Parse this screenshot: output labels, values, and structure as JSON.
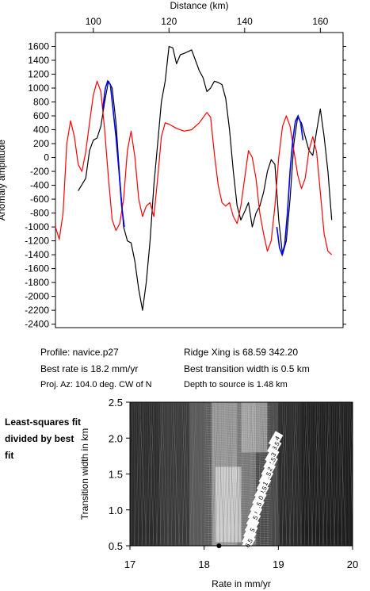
{
  "chart_data": [
    {
      "type": "line",
      "xlabel": "Distance (km)",
      "ylabel": "Anomaly amplitude",
      "xlim": [
        90,
        166
      ],
      "ylim": [
        -2450,
        1800
      ],
      "x_ticks": [
        100,
        120,
        140,
        160
      ],
      "y_ticks": [
        1600,
        1400,
        1200,
        1000,
        800,
        600,
        400,
        200,
        0,
        -200,
        -400,
        -600,
        -800,
        -1000,
        -1200,
        -1400,
        -1600,
        -1800,
        -2000,
        -2200,
        -2400
      ],
      "grid": false,
      "series": [
        {
          "color": "#000000",
          "values": [
            [
              96,
              -480
            ],
            [
              98,
              -300
            ],
            [
              99,
              100
            ],
            [
              100,
              250
            ],
            [
              101,
              280
            ],
            [
              102,
              450
            ],
            [
              103,
              800
            ],
            [
              104,
              1100
            ],
            [
              105,
              1000
            ],
            [
              106,
              500
            ],
            [
              107,
              -300
            ],
            [
              108,
              -1000
            ],
            [
              109,
              -1200
            ],
            [
              110,
              -1230
            ],
            [
              111,
              -1500
            ],
            [
              112,
              -1900
            ],
            [
              113,
              -2200
            ],
            [
              114,
              -1800
            ],
            [
              115,
              -1200
            ],
            [
              116,
              -400
            ],
            [
              117,
              200
            ],
            [
              118,
              800
            ],
            [
              119,
              1100
            ],
            [
              120,
              1600
            ],
            [
              121,
              1580
            ],
            [
              122,
              1350
            ],
            [
              123,
              1480
            ],
            [
              124,
              1500
            ],
            [
              126,
              1550
            ],
            [
              127,
              1400
            ],
            [
              128,
              1250
            ],
            [
              129,
              1150
            ],
            [
              130,
              950
            ],
            [
              131,
              1000
            ],
            [
              132,
              1100
            ],
            [
              133,
              1080
            ],
            [
              134,
              1050
            ],
            [
              135,
              850
            ],
            [
              136,
              400
            ],
            [
              137,
              -200
            ],
            [
              138,
              -700
            ],
            [
              139,
              -900
            ],
            [
              140,
              -780
            ],
            [
              141,
              -650
            ],
            [
              142,
              -1000
            ],
            [
              143,
              -800
            ],
            [
              144,
              -700
            ],
            [
              145,
              -500
            ],
            [
              146,
              -200
            ],
            [
              147,
              -30
            ],
            [
              148,
              -100
            ],
            [
              149,
              -900
            ],
            [
              150,
              -1400
            ],
            [
              151,
              -1200
            ],
            [
              152,
              -600
            ],
            [
              153,
              200
            ],
            [
              154,
              580
            ],
            [
              155,
              500
            ],
            [
              156,
              300
            ],
            [
              157,
              100
            ],
            [
              158,
              30
            ],
            [
              159,
              380
            ],
            [
              160,
              700
            ],
            [
              161,
              300
            ],
            [
              162,
              -200
            ],
            [
              163,
              -900
            ]
          ]
        },
        {
          "color": "#ff0000",
          "values": [
            [
              90,
              -1000
            ],
            [
              91,
              -1180
            ],
            [
              92,
              -800
            ],
            [
              93,
              200
            ],
            [
              94,
              530
            ],
            [
              95,
              300
            ],
            [
              96,
              -100
            ],
            [
              97,
              -200
            ],
            [
              98,
              80
            ],
            [
              99,
              500
            ],
            [
              100,
              900
            ],
            [
              101,
              1100
            ],
            [
              102,
              950
            ],
            [
              103,
              400
            ],
            [
              104,
              -300
            ],
            [
              105,
              -900
            ],
            [
              106,
              -1050
            ],
            [
              107,
              -950
            ],
            [
              108,
              -600
            ],
            [
              109,
              100
            ],
            [
              110,
              380
            ],
            [
              111,
              0
            ],
            [
              112,
              -600
            ],
            [
              113,
              -850
            ],
            [
              114,
              -700
            ],
            [
              115,
              -650
            ],
            [
              116,
              -850
            ],
            [
              117,
              -300
            ],
            [
              118,
              300
            ],
            [
              119,
              500
            ],
            [
              120,
              480
            ],
            [
              122,
              420
            ],
            [
              124,
              380
            ],
            [
              126,
              400
            ],
            [
              128,
              500
            ],
            [
              130,
              650
            ],
            [
              131,
              580
            ],
            [
              132,
              50
            ],
            [
              133,
              -400
            ],
            [
              134,
              -650
            ],
            [
              135,
              -700
            ],
            [
              136,
              -650
            ],
            [
              137,
              -850
            ],
            [
              138,
              -950
            ],
            [
              139,
              -700
            ],
            [
              140,
              -300
            ],
            [
              141,
              100
            ],
            [
              142,
              0
            ],
            [
              143,
              -300
            ],
            [
              144,
              -800
            ],
            [
              145,
              -1100
            ],
            [
              146,
              -1350
            ],
            [
              147,
              -1200
            ],
            [
              148,
              -700
            ],
            [
              149,
              0
            ],
            [
              150,
              450
            ],
            [
              151,
              600
            ],
            [
              152,
              450
            ],
            [
              153,
              100
            ],
            [
              154,
              -250
            ],
            [
              155,
              -450
            ],
            [
              156,
              -300
            ],
            [
              157,
              100
            ],
            [
              158,
              300
            ],
            [
              159,
              80
            ],
            [
              160,
              -500
            ],
            [
              161,
              -1100
            ],
            [
              162,
              -1350
            ],
            [
              163,
              -1400
            ]
          ]
        },
        {
          "color": "#0000ff",
          "values": [
            [
              102.5,
              700
            ],
            [
              103.2,
              1000
            ],
            [
              103.8,
              1100
            ],
            [
              104.5,
              1050
            ],
            [
              105.2,
              700
            ],
            [
              106,
              300
            ],
            [
              106.8,
              -200
            ],
            [
              107.5,
              -700
            ],
            [
              108.2,
              -1000
            ],
            [
              148.5,
              -1000
            ],
            [
              149.2,
              -1300
            ],
            [
              149.9,
              -1400
            ],
            [
              150.6,
              -1250
            ],
            [
              151.3,
              -800
            ],
            [
              152,
              -200
            ],
            [
              152.7,
              250
            ],
            [
              153.4,
              520
            ],
            [
              154.1,
              600
            ],
            [
              154.8,
              500
            ],
            [
              155.4,
              250
            ]
          ]
        }
      ]
    },
    {
      "type": "heatmap",
      "xlabel": "Rate in mm/yr",
      "ylabel": "Transition width in km",
      "xlim": [
        17,
        20
      ],
      "ylim": [
        0.5,
        2.5
      ],
      "x_ticks": [
        "17",
        "18",
        "19",
        "20"
      ],
      "y_ticks": [
        "2.5",
        "2.0",
        "1.5",
        "1.0",
        "0.5"
      ],
      "best_fit_marker": {
        "x": 18.2,
        "y": 0.5
      },
      "contour_labels": [
        {
          "text": "14",
          "x": 18.97,
          "y": 1.98
        },
        {
          "text": "13.5",
          "x": 18.95,
          "y": 1.87
        },
        {
          "text": "13",
          "x": 18.92,
          "y": 1.75
        },
        {
          "text": "12.5",
          "x": 18.9,
          "y": 1.65
        },
        {
          "text": "12",
          "x": 18.87,
          "y": 1.55
        },
        {
          "text": "11.5",
          "x": 18.84,
          "y": 1.45
        },
        {
          "text": "11",
          "x": 18.81,
          "y": 1.35
        },
        {
          "text": "10.5",
          "x": 18.78,
          "y": 1.25
        },
        {
          "text": "10",
          "x": 18.75,
          "y": 1.15
        },
        {
          "text": "9.5",
          "x": 18.72,
          "y": 1.05
        },
        {
          "text": "9",
          "x": 18.69,
          "y": 0.95
        },
        {
          "text": "8.5",
          "x": 18.67,
          "y": 0.86
        },
        {
          "text": "8",
          "x": 18.65,
          "y": 0.77
        },
        {
          "text": "7.5",
          "x": 18.63,
          "y": 0.69
        },
        {
          "text": "7",
          "x": 18.61,
          "y": 0.61
        },
        {
          "text": "6.5",
          "x": 18.6,
          "y": 0.54
        }
      ]
    }
  ],
  "info": {
    "profile": "Profile: navice.p27",
    "ridge": "Ridge Xing is 68.59 342.20",
    "best_rate": "Best rate is 18.2 mm/yr",
    "best_width": "Best transition width is 0.5 km",
    "proj": "Proj. Az: 104.0 deg. CW of N",
    "depth": "Depth to source is   1.48 km"
  },
  "side_label": "Least-squares fit divided by best fit"
}
